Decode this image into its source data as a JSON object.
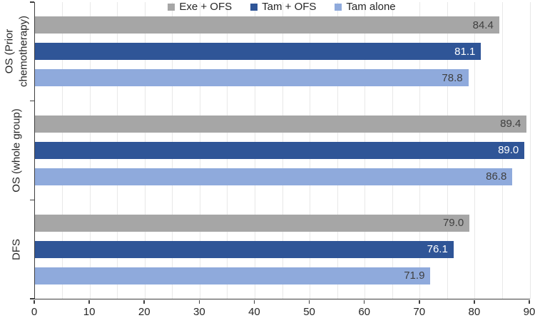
{
  "chart_data": {
    "type": "bar",
    "orientation": "horizontal",
    "title": "",
    "xlabel": "",
    "ylabel": "",
    "xlim": [
      0,
      90
    ],
    "x_ticks": [
      0,
      10,
      20,
      30,
      40,
      50,
      60,
      70,
      80,
      90
    ],
    "minor_grid_step": 5,
    "grid": "vertical-minor",
    "legend_position": "top-center",
    "axis_color": "#3f3f3f",
    "grid_color": "#e8e8e8",
    "tick_label_color": "#262626",
    "series": [
      {
        "name": "Exe + OFS",
        "color": "#A6A6A6",
        "label_color": "#404040"
      },
      {
        "name": "Tam + OFS",
        "color": "#2F5597",
        "label_color": "#FFFFFF"
      },
      {
        "name": "Tam alone",
        "color": "#8FAADC",
        "label_color": "#404040"
      }
    ],
    "groups": [
      {
        "label": "OS (Prior\nchemotherapy)",
        "values": [
          84.4,
          81.1,
          78.8
        ]
      },
      {
        "label": "OS (whole group)",
        "values": [
          89.4,
          89.0,
          86.8
        ]
      },
      {
        "label": "DFS",
        "values": [
          79.0,
          76.1,
          71.9
        ]
      }
    ],
    "value_label_decimals": 1
  }
}
